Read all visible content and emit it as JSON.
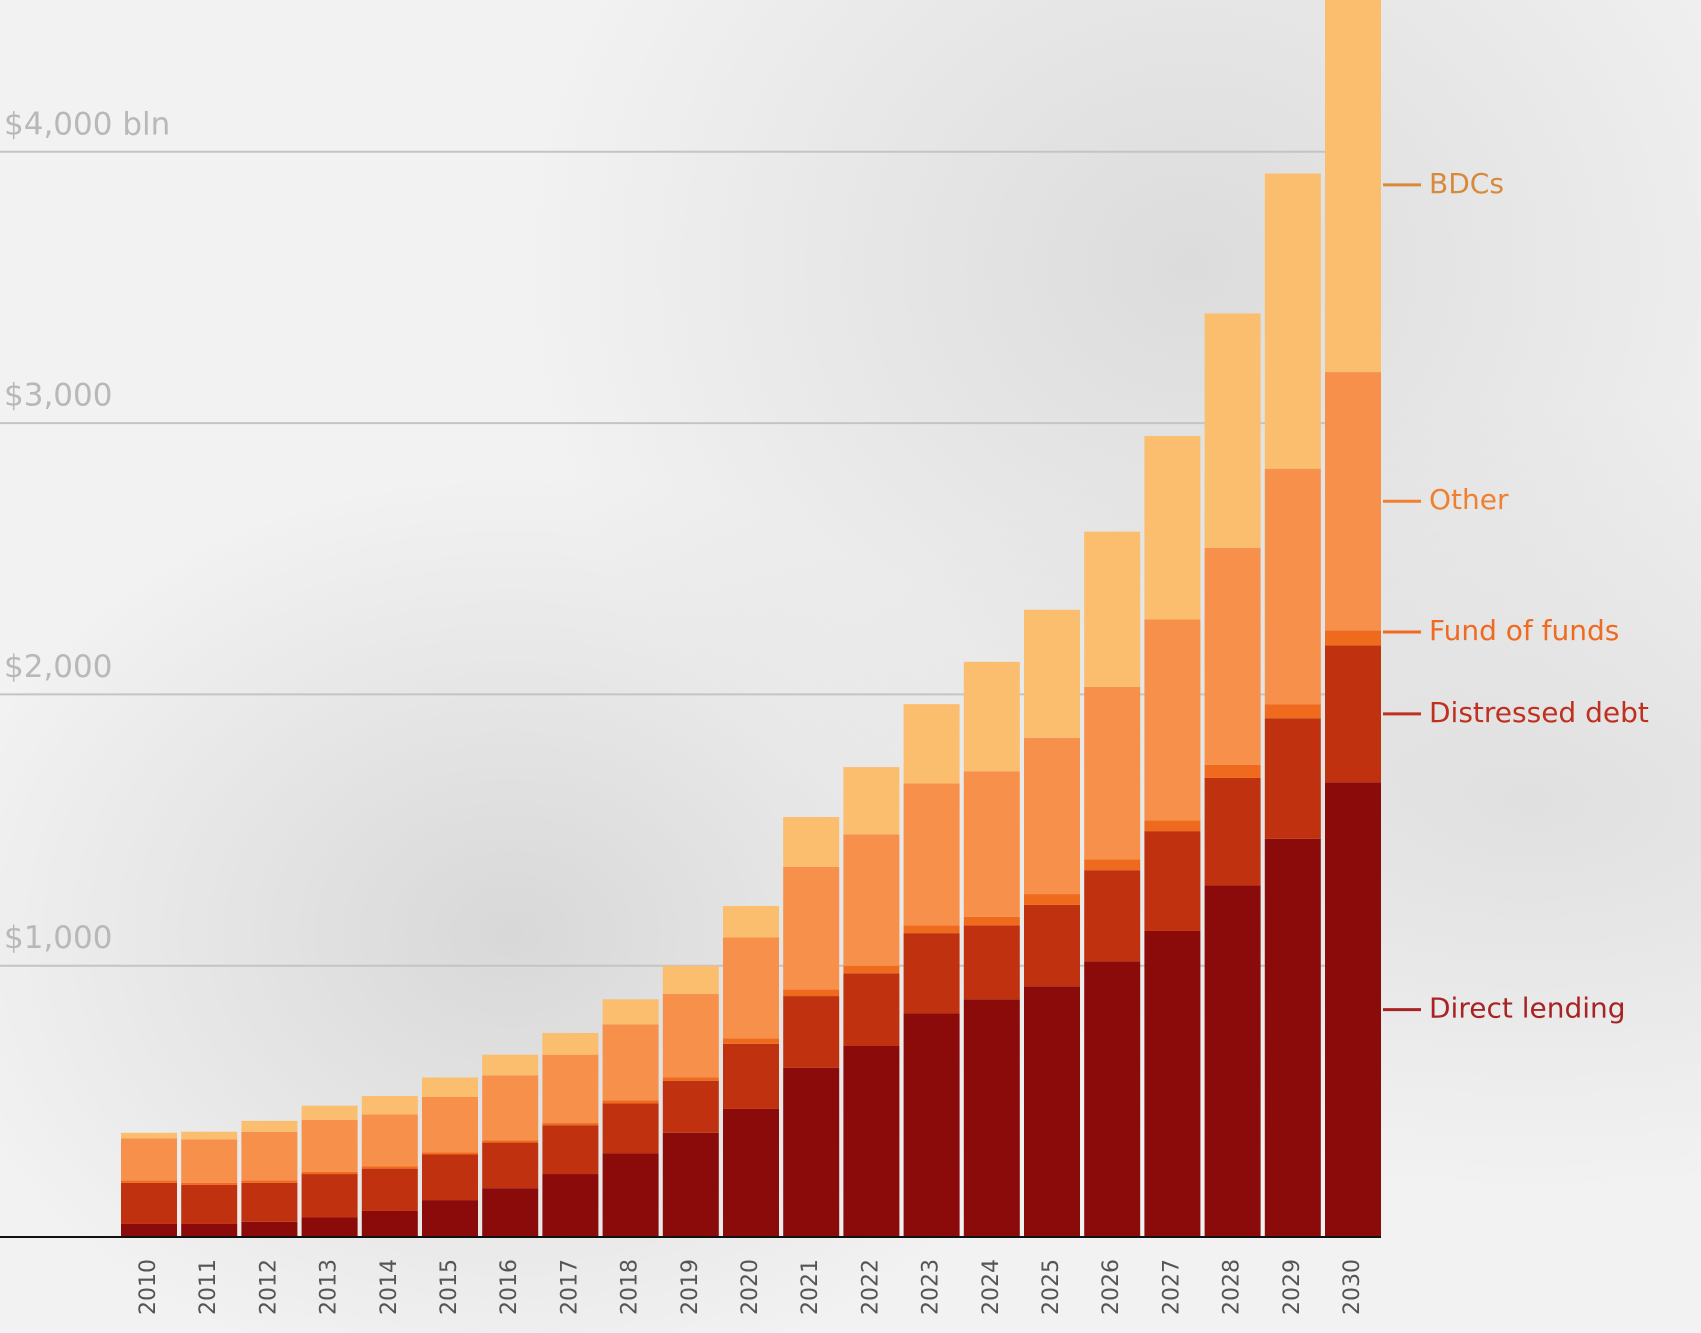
{
  "chart_data": {
    "type": "stacked_bar",
    "categories": [
      "2010",
      "2011",
      "2012",
      "2013",
      "2014",
      "2015",
      "2016",
      "2017",
      "2018",
      "2019",
      "2020",
      "2021",
      "2022",
      "2023",
      "2024",
      "2025",
      "2026",
      "2027",
      "2028",
      "2029",
      "2030"
    ],
    "series": [
      {
        "name": "Direct lending",
        "color": "#8b0a0a",
        "label_color": "#a82424",
        "values": [
          48,
          48,
          56,
          72,
          96,
          136,
          180,
          232,
          308,
          384,
          472,
          624,
          704,
          824,
          876,
          924,
          1016,
          1128,
          1296,
          1468,
          1676
        ]
      },
      {
        "name": "Distressed debt",
        "color": "#c0320f",
        "label_color": "#c03020",
        "values": [
          152,
          144,
          144,
          160,
          156,
          168,
          168,
          180,
          184,
          192,
          240,
          264,
          268,
          296,
          272,
          300,
          336,
          368,
          396,
          444,
          504
        ]
      },
      {
        "name": "Fund of funds",
        "color": "#f06a1e",
        "label_color": "#f06a20",
        "values": [
          8,
          8,
          8,
          8,
          8,
          8,
          8,
          8,
          12,
          12,
          20,
          24,
          28,
          28,
          32,
          40,
          40,
          40,
          48,
          52,
          56
        ]
      },
      {
        "name": "Other",
        "color": "#f7904a",
        "label_color": "#f08030",
        "values": [
          156,
          160,
          180,
          192,
          192,
          204,
          240,
          252,
          280,
          308,
          372,
          452,
          484,
          524,
          536,
          576,
          636,
          740,
          800,
          868,
          952
        ]
      },
      {
        "name": "BDCs",
        "color": "#fbbd6e",
        "label_color": "#d88a3a",
        "values": [
          20,
          28,
          40,
          52,
          68,
          72,
          76,
          80,
          92,
          104,
          116,
          184,
          248,
          292,
          404,
          472,
          572,
          676,
          864,
          1088,
          1380
        ]
      }
    ],
    "ylim": [
      0,
      4600
    ],
    "yticks": [
      {
        "value": 1000,
        "label": "$1,000"
      },
      {
        "value": 2000,
        "label": "$2,000"
      },
      {
        "value": 3000,
        "label": "$3,000"
      },
      {
        "value": 4000,
        "label": "$4,000 bln"
      }
    ],
    "grid": true
  }
}
